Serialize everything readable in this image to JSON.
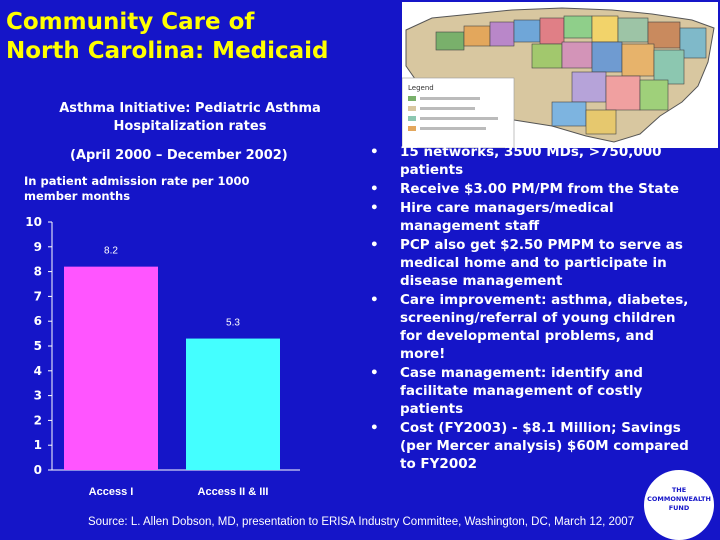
{
  "slide": {
    "title_line1": "Community Care of",
    "title_line2": "North Carolina: Medicaid",
    "subtitle_line1": "Asthma Initiative: Pediatric Asthma",
    "subtitle_line2": "Hospitalization rates",
    "period": "(April 2000 – December 2002)",
    "ylabel_line1": "In patient admission rate per 1000",
    "ylabel_line2": "member months",
    "source": "Source: L. Allen Dobson, MD, presentation to ERISA Industry Committee, Washington, DC, March 12, 2007"
  },
  "bullets": [
    {
      "marker": "•",
      "text": "15 networks, 3500 MDs, >750,000 patients"
    },
    {
      "marker": "•",
      "text": "Receive $3.00 PM/PM from the State"
    },
    {
      "marker": "•",
      "text": "Hire care managers/medical management staff"
    },
    {
      "marker": "•",
      "text": "PCP also get $2.50 PMPM to serve as medical home and to participate in disease management"
    },
    {
      "marker": "•",
      "text": "Care improvement: asthma, diabetes, screening/referral of young children for developmental problems, and more!"
    },
    {
      "marker": "•",
      "text": "Case management: identify and facilitate management of costly patients"
    },
    {
      "marker": "•",
      "text": "Cost (FY2003) - $8.1 Million; Savings (per Mercer analysis) $60M compared to FY2002"
    }
  ],
  "logo": {
    "line1": "THE",
    "line2": "COMMONWEALTH",
    "line3": "FUND"
  },
  "map": {
    "legend_title": "Legend"
  },
  "chart_data": {
    "type": "bar",
    "categories": [
      "Access I",
      "Access II & III"
    ],
    "values": [
      8.2,
      5.3
    ],
    "data_labels": [
      "8.2",
      "5.3"
    ],
    "colors": [
      "#ff55ff",
      "#44ffff"
    ],
    "ylim": [
      0,
      10
    ],
    "yticks": [
      "0",
      "1",
      "2",
      "3",
      "4",
      "5",
      "6",
      "7",
      "8",
      "9",
      "10"
    ],
    "grid": false
  }
}
